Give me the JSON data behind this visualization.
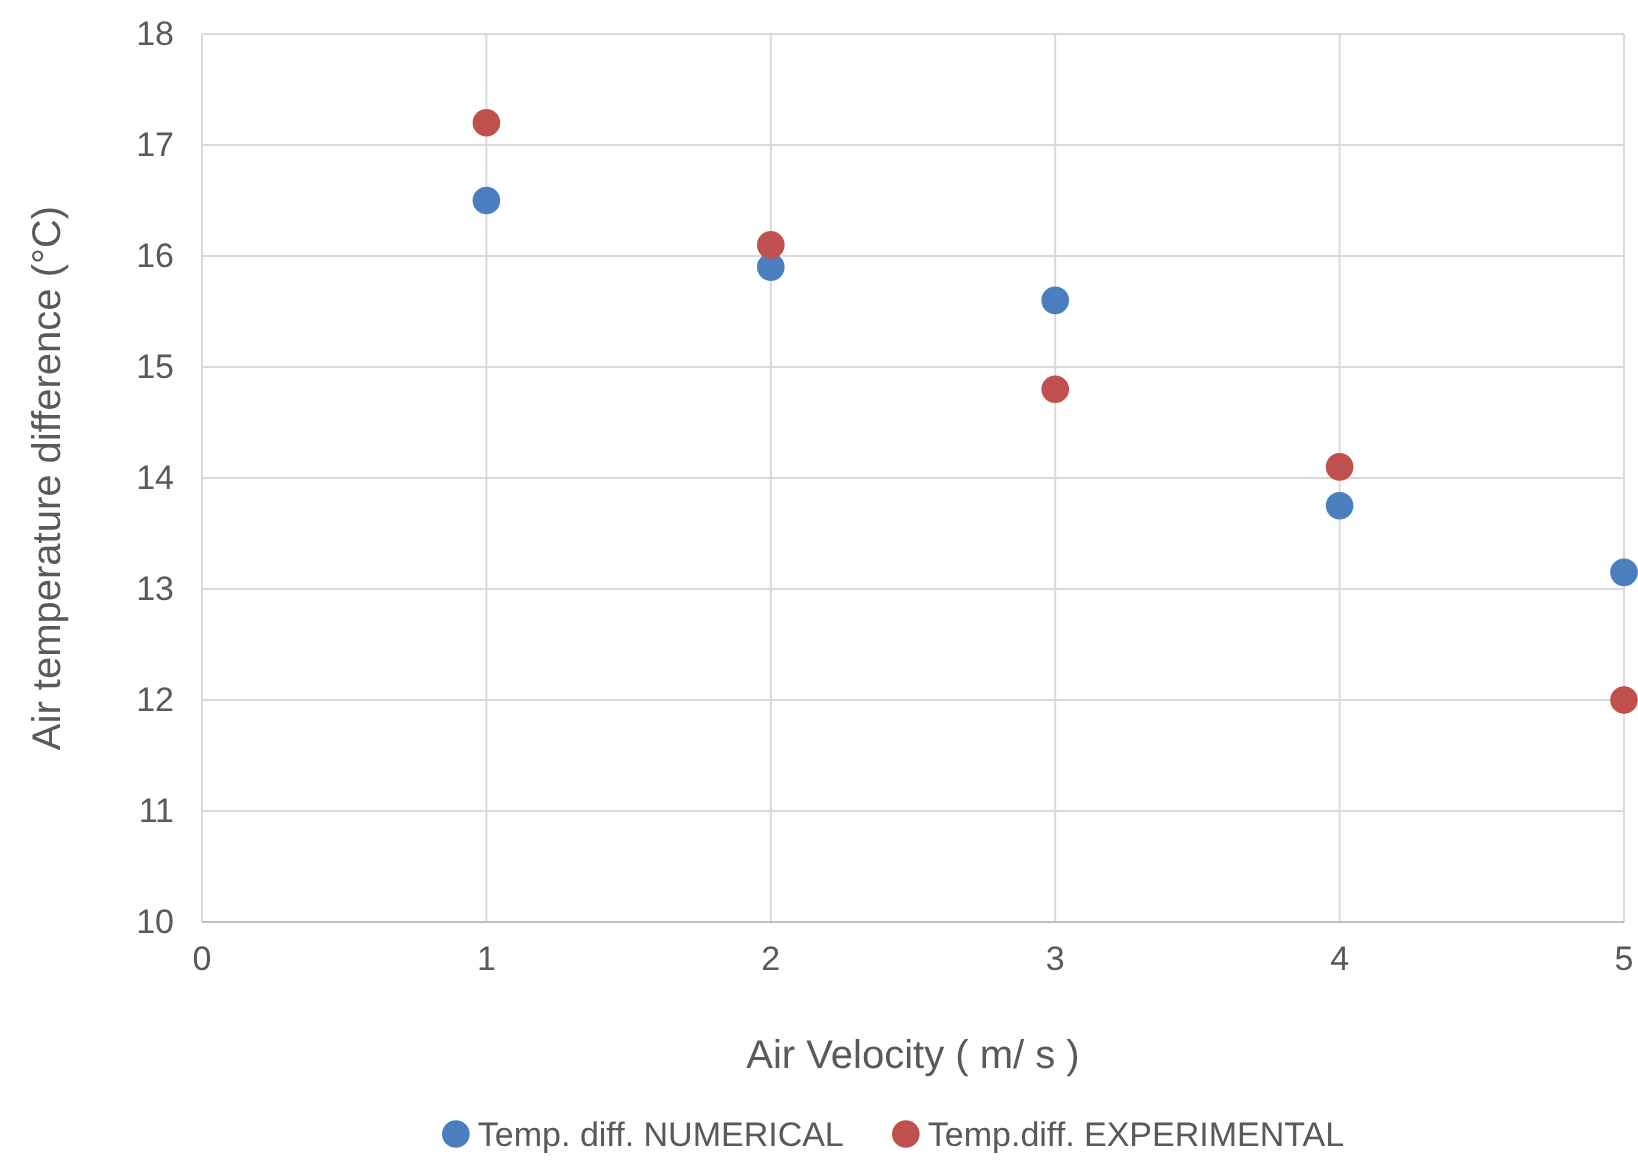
{
  "chart_data": {
    "type": "scatter",
    "xlabel": "Air Velocity ( m/ s )",
    "ylabel": "Air temperature difference (°C)",
    "xlim": [
      0,
      5
    ],
    "xticks": [
      0,
      1,
      2,
      3,
      4,
      5
    ],
    "ylim": [
      10,
      18
    ],
    "yticks": [
      10,
      11,
      12,
      13,
      14,
      15,
      16,
      17,
      18
    ],
    "grid": true,
    "legend": "bottom",
    "marker": "circle",
    "series": [
      {
        "name": "Temp. diff. NUMERICAL",
        "color": "#4a7ebf",
        "x": [
          1,
          2,
          3,
          4,
          5
        ],
        "values": [
          16.5,
          15.9,
          15.6,
          13.75,
          13.15
        ]
      },
      {
        "name": "Temp.diff. EXPERIMENTAL",
        "color": "#c0504d",
        "x": [
          1,
          2,
          3,
          4,
          5
        ],
        "values": [
          17.2,
          16.1,
          14.8,
          14.1,
          12.0
        ]
      }
    ]
  }
}
